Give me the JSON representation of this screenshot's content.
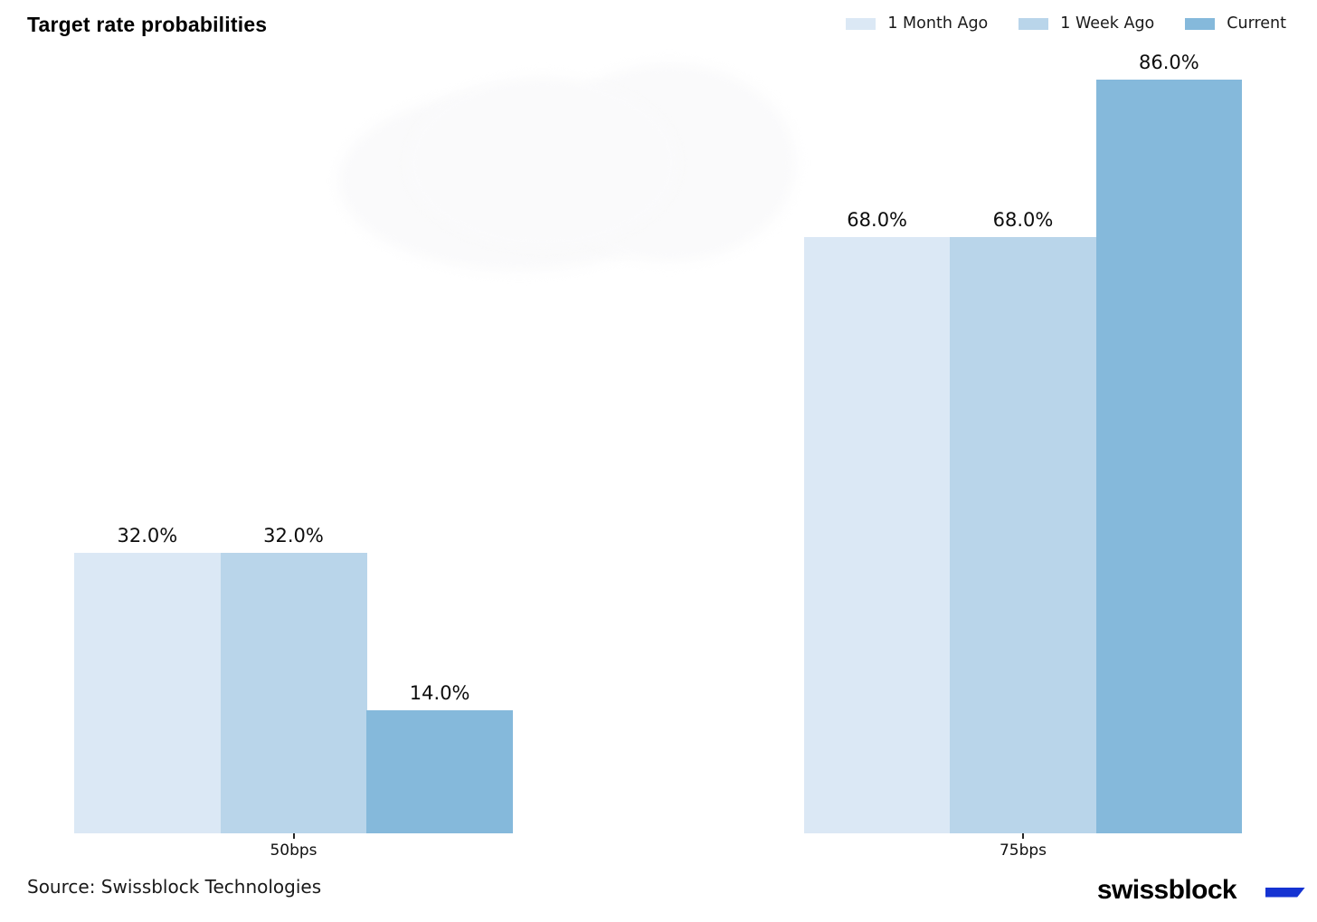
{
  "title": "Target rate probabilities",
  "source": "Source: Swissblock Technologies",
  "logo": {
    "wordmark": "swissblock",
    "mark_color": "#1533d2"
  },
  "colors": {
    "series_1_month_ago": "#dbe8f5",
    "series_1_week_ago": "#b9d5ea",
    "series_current": "#85b9db",
    "text": "#0d0d0d",
    "background": "#ffffff"
  },
  "chart_data": {
    "type": "bar",
    "categories": [
      "50bps",
      "75bps"
    ],
    "series": [
      {
        "name": "1 Month Ago",
        "values": [
          32.0,
          68.0
        ],
        "labels": [
          "32.0%",
          "68.0%"
        ],
        "color": "#dbe8f5"
      },
      {
        "name": "1 Week Ago",
        "values": [
          32.0,
          68.0
        ],
        "labels": [
          "32.0%",
          "68.0%"
        ],
        "color": "#b9d5ea"
      },
      {
        "name": "Current",
        "values": [
          14.0,
          86.0
        ],
        "labels": [
          "14.0%",
          "86.0%"
        ],
        "color": "#85b9db"
      }
    ],
    "title": "Target rate probabilities",
    "xlabel": "",
    "ylabel": "",
    "ylim": [
      0,
      100
    ],
    "grid": false,
    "axes_visible": false,
    "data_labels": true,
    "legend_position": "top-right"
  }
}
